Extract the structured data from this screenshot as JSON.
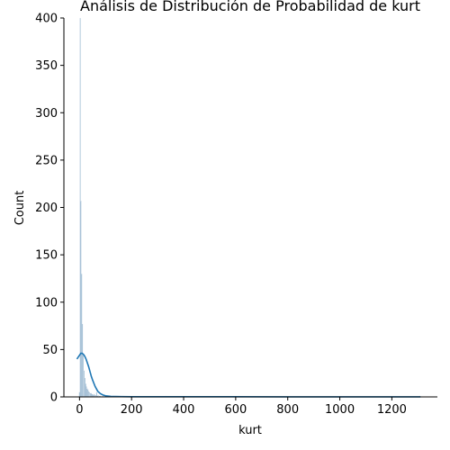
{
  "chart_data": {
    "type": "histogram",
    "title": "Análisis de Distribución de Probabilidad de kurt",
    "xlabel": "kurt",
    "ylabel": "Count",
    "xlim": [
      -60,
      1375
    ],
    "ylim": [
      0,
      400
    ],
    "xticks": [
      0,
      200,
      400,
      600,
      800,
      1000,
      1200
    ],
    "yticks": [
      0,
      50,
      100,
      150,
      200,
      250,
      300,
      350,
      400
    ],
    "grid": false,
    "legend": "none",
    "colors": {
      "bars": "#5f8fb6",
      "kde": "#1f77b4"
    },
    "bins": [
      {
        "x0": -2,
        "x1": 1,
        "count": 5
      },
      {
        "x0": 1,
        "x1": 4,
        "count": 400
      },
      {
        "x0": 4,
        "x1": 7,
        "count": 207
      },
      {
        "x0": 7,
        "x1": 10,
        "count": 130
      },
      {
        "x0": 10,
        "x1": 13,
        "count": 77
      },
      {
        "x0": 13,
        "x1": 16,
        "count": 45
      },
      {
        "x0": 16,
        "x1": 19,
        "count": 28
      },
      {
        "x0": 19,
        "x1": 22,
        "count": 20
      },
      {
        "x0": 22,
        "x1": 25,
        "count": 14
      },
      {
        "x0": 25,
        "x1": 28,
        "count": 11
      },
      {
        "x0": 28,
        "x1": 31,
        "count": 9
      },
      {
        "x0": 31,
        "x1": 34,
        "count": 8
      },
      {
        "x0": 34,
        "x1": 37,
        "count": 6
      },
      {
        "x0": 37,
        "x1": 40,
        "count": 5
      },
      {
        "x0": 40,
        "x1": 43,
        "count": 4
      },
      {
        "x0": 43,
        "x1": 46,
        "count": 4
      },
      {
        "x0": 46,
        "x1": 49,
        "count": 3
      },
      {
        "x0": 49,
        "x1": 52,
        "count": 3
      },
      {
        "x0": 52,
        "x1": 55,
        "count": 2
      },
      {
        "x0": 55,
        "x1": 58,
        "count": 3
      },
      {
        "x0": 58,
        "x1": 61,
        "count": 2
      },
      {
        "x0": 61,
        "x1": 64,
        "count": 2
      },
      {
        "x0": 64,
        "x1": 67,
        "count": 5
      },
      {
        "x0": 67,
        "x1": 70,
        "count": 1
      },
      {
        "x0": 70,
        "x1": 73,
        "count": 2
      },
      {
        "x0": 73,
        "x1": 76,
        "count": 1
      },
      {
        "x0": 76,
        "x1": 79,
        "count": 1
      },
      {
        "x0": 79,
        "x1": 82,
        "count": 1
      },
      {
        "x0": 88,
        "x1": 91,
        "count": 1
      },
      {
        "x0": 100,
        "x1": 103,
        "count": 1
      },
      {
        "x0": 130,
        "x1": 133,
        "count": 1
      },
      {
        "x0": 330,
        "x1": 333,
        "count": 1
      },
      {
        "x0": 610,
        "x1": 613,
        "count": 1
      },
      {
        "x0": 1305,
        "x1": 1308,
        "count": 1
      }
    ],
    "kde": {
      "x": [
        -10,
        0,
        5,
        10,
        15,
        20,
        25,
        30,
        35,
        40,
        45,
        50,
        60,
        70,
        80,
        90,
        100,
        120,
        140,
        160,
        200,
        300,
        400,
        600,
        800,
        1000,
        1200,
        1310
      ],
      "y": [
        40,
        44,
        46,
        46,
        45,
        43,
        40,
        36,
        32,
        27,
        22,
        18,
        11,
        6,
        3.5,
        2,
        1.2,
        0.6,
        0.4,
        0.3,
        0.2,
        0.15,
        0.15,
        0.15,
        0.1,
        0.1,
        0.1,
        0.1
      ]
    }
  }
}
